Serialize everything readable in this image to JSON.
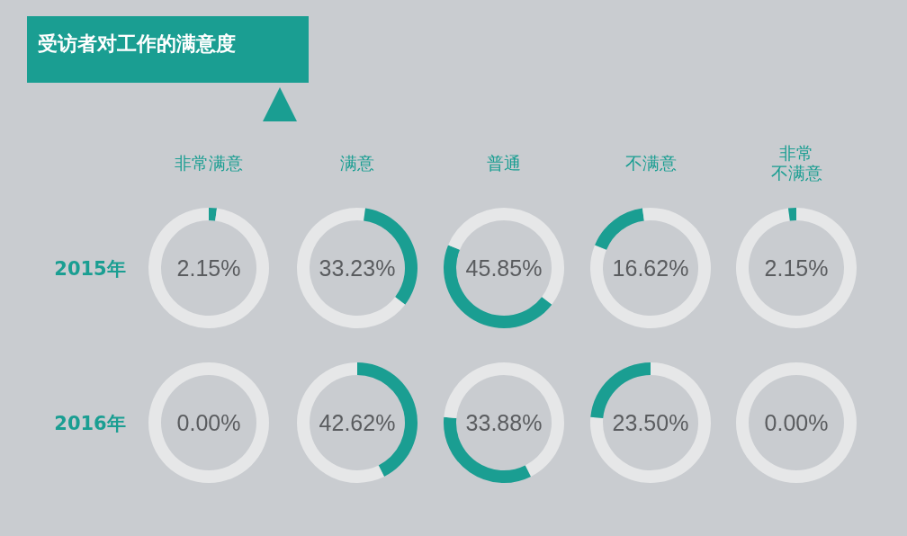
{
  "chart_data": [
    {
      "type": "other",
      "title": "受访者对工作的满意度"
    },
    {
      "type": "donut",
      "title": "非常满意",
      "ylabel": "2015年",
      "categories": [
        null,
        null
      ],
      "values": [
        2.15,
        97.85
      ],
      "colors": [
        "#1a9e92",
        "#e6e7e8"
      ],
      "annotations": [
        "2.15%"
      ]
    },
    {
      "type": "donut",
      "title": "满意",
      "categories": [
        null,
        null,
        null
      ],
      "values": [
        2.15,
        33.23,
        64.62
      ],
      "colors": [
        "#e6e7e8",
        "#1a9e92",
        "#e6e7e8"
      ],
      "annotations": [
        "33.23%"
      ]
    },
    {
      "type": "donut",
      "title": "普通",
      "categories": [
        null,
        null,
        null
      ],
      "values": [
        35.38,
        45.85,
        18.77
      ],
      "colors": [
        "#e6e7e8",
        "#1a9e92",
        "#e6e7e8"
      ],
      "annotations": [
        "45.85%"
      ]
    },
    {
      "type": "donut",
      "title": "不满意",
      "categories": [
        null,
        null,
        null
      ],
      "values": [
        81.23,
        16.62,
        2.15
      ],
      "colors": [
        "#e6e7e8",
        "#1a9e92",
        "#e6e7e8"
      ],
      "annotations": [
        "16.62%"
      ]
    },
    {
      "type": "donut",
      "title": "非常不满意",
      "categories": [
        null,
        null
      ],
      "values": [
        97.85,
        2.15
      ],
      "colors": [
        "#e6e7e8",
        "#1a9e92"
      ],
      "annotations": [
        "2.15%"
      ]
    },
    {
      "type": "donut",
      "ylabel": "2016年",
      "categories": [
        null,
        null
      ],
      "values": [
        0,
        100
      ],
      "colors": [
        "#1a9e92",
        "#e6e7e8"
      ],
      "annotations": [
        "0.00%"
      ]
    },
    {
      "type": "donut",
      "categories": [
        null,
        null
      ],
      "values": [
        42.62,
        57.38
      ],
      "colors": [
        "#1a9e92",
        "#e6e7e8"
      ],
      "annotations": [
        "42.62%"
      ]
    },
    {
      "type": "donut",
      "categories": [
        null,
        null,
        null
      ],
      "values": [
        42.62,
        33.88,
        23.5
      ],
      "colors": [
        "#e6e7e8",
        "#1a9e92",
        "#e6e7e8"
      ],
      "annotations": [
        "33.88%"
      ]
    },
    {
      "type": "donut",
      "categories": [
        null,
        null
      ],
      "values": [
        76.5,
        23.5
      ],
      "colors": [
        "#e6e7e8",
        "#1a9e92"
      ],
      "annotations": [
        "23.50%"
      ]
    },
    {
      "type": "donut",
      "categories": [
        null,
        null
      ],
      "values": [
        0,
        100
      ],
      "colors": [
        "#1a9e92",
        "#e6e7e8"
      ],
      "annotations": [
        "0.00%"
      ]
    }
  ]
}
